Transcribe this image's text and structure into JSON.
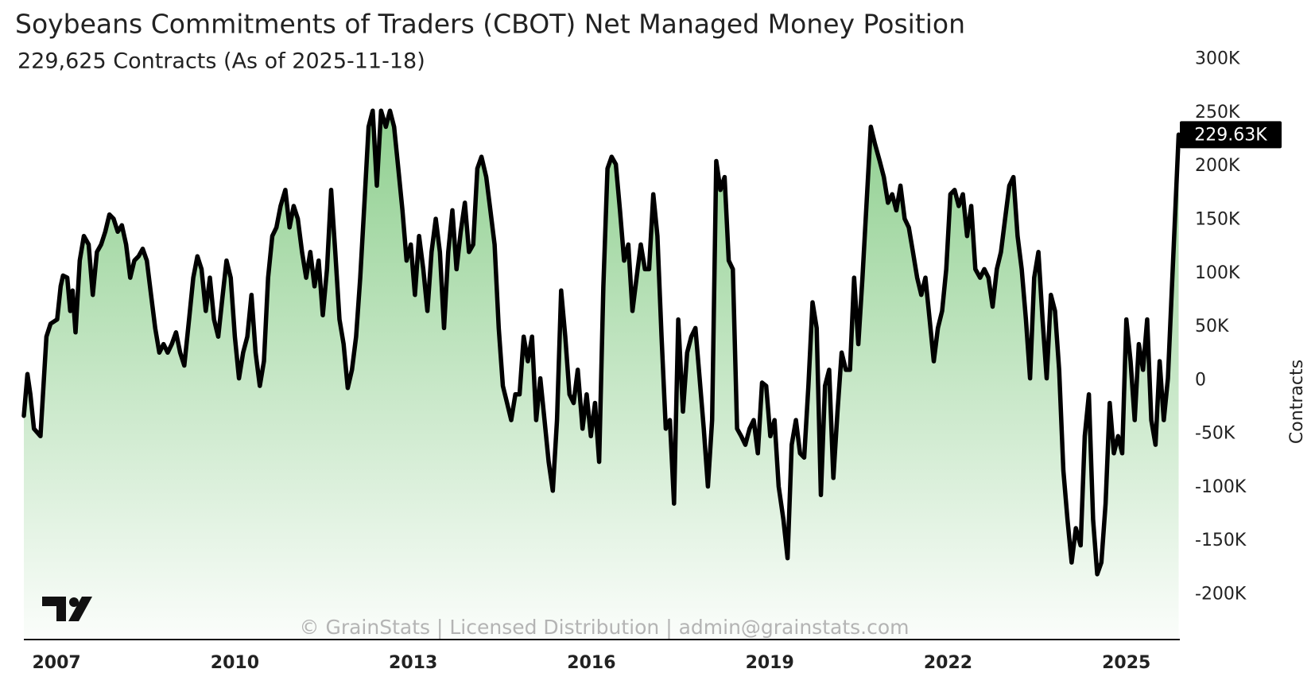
{
  "chart_data": {
    "type": "area-line",
    "title": "Soybeans Commitments of Traders (CBOT) Net Managed Money Position",
    "subtitle": "229,625 Contracts (As of 2025-11-18)",
    "y_label": "Contracts",
    "watermark": "© GrainStats | Licensed Distribution | admin@grainstats.com",
    "last_value_label": "229.63K",
    "color": "#000000",
    "fill_color": "#7cc77c",
    "grid": false,
    "xlim": [
      2006.45,
      2025.9
    ],
    "xticks": [
      2007,
      2010,
      2013,
      2016,
      2019,
      2022,
      2025
    ],
    "ylim": [
      -242000,
      322000
    ],
    "yticks": [
      {
        "value": 300000,
        "label": "300K"
      },
      {
        "value": 250000,
        "label": "250K"
      },
      {
        "value": 200000,
        "label": "200K"
      },
      {
        "value": 150000,
        "label": "150K"
      },
      {
        "value": 100000,
        "label": "100K"
      },
      {
        "value": 50000,
        "label": "50K"
      },
      0,
      {
        "value": -50000,
        "label": "-50K"
      },
      {
        "value": -100000,
        "label": "-100K"
      },
      {
        "value": -150000,
        "label": "-150K"
      },
      {
        "value": -200000,
        "label": "-200K"
      }
    ],
    "x": [
      2006.45,
      2006.51,
      2006.56,
      2006.62,
      2006.73,
      2006.83,
      2006.9,
      2007.01,
      2007.07,
      2007.11,
      2007.18,
      2007.23,
      2007.27,
      2007.32,
      2007.39,
      2007.46,
      2007.54,
      2007.61,
      2007.68,
      2007.75,
      2007.82,
      2007.89,
      2007.96,
      2008.03,
      2008.1,
      2008.17,
      2008.24,
      2008.31,
      2008.38,
      2008.45,
      2008.52,
      2008.59,
      2008.66,
      2008.73,
      2008.8,
      2008.87,
      2008.94,
      2009.01,
      2009.08,
      2009.15,
      2009.23,
      2009.3,
      2009.37,
      2009.44,
      2009.51,
      2009.58,
      2009.65,
      2009.72,
      2009.79,
      2009.86,
      2009.93,
      2010.0,
      2010.07,
      2010.14,
      2010.21,
      2010.28,
      2010.35,
      2010.42,
      2010.49,
      2010.56,
      2010.63,
      2010.7,
      2010.77,
      2010.85,
      2010.92,
      2010.99,
      2011.06,
      2011.13,
      2011.2,
      2011.27,
      2011.34,
      2011.41,
      2011.48,
      2011.55,
      2011.62,
      2011.69,
      2011.76,
      2011.83,
      2011.9,
      2011.97,
      2012.04,
      2012.11,
      2012.18,
      2012.25,
      2012.32,
      2012.39,
      2012.46,
      2012.54,
      2012.61,
      2012.68,
      2012.75,
      2012.82,
      2012.89,
      2012.96,
      2013.03,
      2013.1,
      2013.17,
      2013.24,
      2013.31,
      2013.38,
      2013.45,
      2013.52,
      2013.59,
      2013.66,
      2013.73,
      2013.8,
      2013.87,
      2013.94,
      2014.01,
      2014.08,
      2014.15,
      2014.23,
      2014.3,
      2014.37,
      2014.44,
      2014.51,
      2014.58,
      2014.65,
      2014.72,
      2014.79,
      2014.86,
      2014.93,
      2015.0,
      2015.07,
      2015.14,
      2015.21,
      2015.28,
      2015.35,
      2015.42,
      2015.49,
      2015.56,
      2015.63,
      2015.7,
      2015.77,
      2015.85,
      2015.92,
      2015.99,
      2016.06,
      2016.13,
      2016.2,
      2016.27,
      2016.34,
      2016.41,
      2016.48,
      2016.55,
      2016.62,
      2016.69,
      2016.76,
      2016.83,
      2016.9,
      2016.97,
      2017.04,
      2017.11,
      2017.18,
      2017.25,
      2017.32,
      2017.39,
      2017.46,
      2017.54,
      2017.61,
      2017.68,
      2017.75,
      2017.82,
      2017.89,
      2017.96,
      2018.03,
      2018.1,
      2018.17,
      2018.24,
      2018.31,
      2018.38,
      2018.45,
      2018.52,
      2018.59,
      2018.66,
      2018.73,
      2018.8,
      2018.87,
      2018.94,
      2019.01,
      2019.08,
      2019.15,
      2019.23,
      2019.3,
      2019.37,
      2019.44,
      2019.51,
      2019.58,
      2019.65,
      2019.72,
      2019.79,
      2019.86,
      2019.93,
      2020.0,
      2020.07,
      2020.14,
      2020.21,
      2020.28,
      2020.35,
      2020.42,
      2020.49,
      2020.56,
      2020.63,
      2020.7,
      2020.77,
      2020.85,
      2020.92,
      2020.99,
      2021.06,
      2021.13,
      2021.2,
      2021.27,
      2021.34,
      2021.41,
      2021.48,
      2021.55,
      2021.62,
      2021.69,
      2021.76,
      2021.83,
      2021.9,
      2021.97,
      2022.04,
      2022.11,
      2022.18,
      2022.25,
      2022.32,
      2022.39,
      2022.46,
      2022.54,
      2022.61,
      2022.68,
      2022.75,
      2022.82,
      2022.89,
      2022.96,
      2023.03,
      2023.1,
      2023.17,
      2023.24,
      2023.31,
      2023.38,
      2023.45,
      2023.52,
      2023.59,
      2023.66,
      2023.73,
      2023.8,
      2023.87,
      2023.94,
      2024.01,
      2024.08,
      2024.15,
      2024.23,
      2024.3,
      2024.37,
      2024.44,
      2024.51,
      2024.58,
      2024.65,
      2024.72,
      2024.79,
      2024.86,
      2024.93,
      2025.0,
      2025.07,
      2025.14,
      2025.21,
      2025.28,
      2025.35,
      2025.42,
      2025.49,
      2025.56,
      2025.63,
      2025.7,
      2025.88
    ],
    "values": [
      -33000,
      6000,
      -13000,
      -45000,
      -52000,
      41000,
      53000,
      57000,
      88000,
      98000,
      96000,
      65000,
      84000,
      45000,
      112000,
      135000,
      127000,
      80000,
      120000,
      127000,
      139000,
      155000,
      151000,
      139000,
      145000,
      127000,
      96000,
      112000,
      116000,
      123000,
      112000,
      80000,
      49000,
      26000,
      34000,
      26000,
      34000,
      45000,
      26000,
      14000,
      57000,
      96000,
      116000,
      104000,
      65000,
      96000,
      57000,
      41000,
      77000,
      112000,
      96000,
      41000,
      2000,
      26000,
      41000,
      80000,
      26000,
      -5000,
      18000,
      96000,
      135000,
      143000,
      163000,
      178000,
      143000,
      163000,
      151000,
      120000,
      96000,
      120000,
      88000,
      112000,
      61000,
      104000,
      178000,
      120000,
      57000,
      34000,
      -7000,
      10000,
      41000,
      96000,
      166000,
      237000,
      252000,
      182000,
      252000,
      237000,
      252000,
      237000,
      198000,
      159000,
      112000,
      127000,
      80000,
      135000,
      104000,
      65000,
      120000,
      151000,
      120000,
      49000,
      120000,
      159000,
      104000,
      139000,
      166000,
      120000,
      127000,
      198000,
      209000,
      190000,
      159000,
      127000,
      49000,
      -5000,
      -21000,
      -37000,
      -13000,
      -13000,
      41000,
      18000,
      41000,
      -37000,
      2000,
      -37000,
      -76000,
      -103000,
      -37000,
      84000,
      41000,
      -13000,
      -21000,
      10000,
      -45000,
      -13000,
      -52000,
      -21000,
      -76000,
      88000,
      198000,
      209000,
      202000,
      159000,
      112000,
      127000,
      65000,
      96000,
      127000,
      104000,
      104000,
      174000,
      135000,
      41000,
      -45000,
      -37000,
      -115000,
      57000,
      -29000,
      26000,
      41000,
      49000,
      2000,
      -45000,
      -99000,
      -37000,
      205000,
      178000,
      190000,
      112000,
      104000,
      -45000,
      -52000,
      -60000,
      -45000,
      -37000,
      -68000,
      -2000,
      -5000,
      -52000,
      -37000,
      -99000,
      -130000,
      -166000,
      -60000,
      -37000,
      -68000,
      -72000,
      -5000,
      73000,
      49000,
      -107000,
      -5000,
      10000,
      -91000,
      -29000,
      26000,
      10000,
      10000,
      96000,
      34000,
      96000,
      166000,
      237000,
      221000,
      205000,
      190000,
      166000,
      174000,
      159000,
      182000,
      151000,
      143000,
      120000,
      96000,
      80000,
      96000,
      57000,
      18000,
      49000,
      65000,
      104000,
      174000,
      178000,
      163000,
      174000,
      135000,
      163000,
      104000,
      96000,
      104000,
      96000,
      69000,
      104000,
      120000,
      151000,
      182000,
      190000,
      135000,
      104000,
      57000,
      2000,
      96000,
      120000,
      57000,
      2000,
      80000,
      65000,
      10000,
      -84000,
      -130000,
      -170000,
      -138000,
      -154000,
      -52000,
      -13000,
      -130000,
      -181000,
      -170000,
      -115000,
      -21000,
      -68000,
      -52000,
      -68000,
      57000,
      18000,
      -37000,
      34000,
      10000,
      57000,
      -37000,
      -60000,
      18000,
      -37000,
      2000,
      229625
    ]
  }
}
